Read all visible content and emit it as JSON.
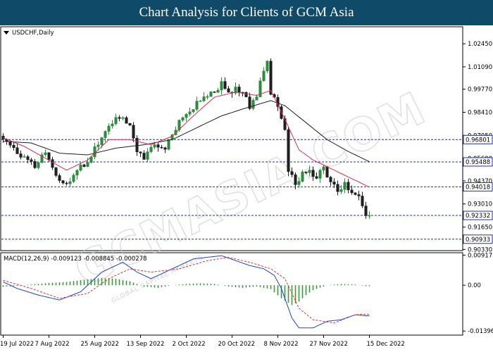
{
  "banner": {
    "title": "Chart Analysis for Clients of GCM Asia"
  },
  "watermark": {
    "text": "GCMASIA.COM",
    "tagline": "GLOBAL CAPITAL MARKETS",
    "color": "#c8c8c8"
  },
  "colors": {
    "bull": "#2e8b3e",
    "bear": "#1f1f1f",
    "ma_fast": "#d9304a",
    "ma_slow": "#1f1f1f",
    "level_line": "#1f2fa8",
    "macd_line": "#2240d8",
    "signal_line": "#e03030",
    "hist": "#3a9a3a"
  },
  "chart_data": [
    {
      "type": "candlestick",
      "title": "USDCHF,Daily",
      "ylim": [
        0.9026,
        1.0345
      ],
      "y_ticks": [
        0.9301,
        0.9165,
        0.9033,
        1.0245,
        1.0109,
        0.9977,
        0.9841,
        0.9705,
        0.9569,
        0.9437
      ],
      "x_labels": [
        "19 Jul 2022",
        "7 Aug 2022",
        "25 Aug 2022",
        "13 Sep 2022",
        "2 Oct 2022",
        "20 Oct 2022",
        "8 Nov 2022",
        "27 Nov 2022",
        "15 Dec 2022"
      ],
      "levels": [
        {
          "label": "0.96801",
          "value": 0.96801
        },
        {
          "label": "0.95488",
          "value": 0.95488
        },
        {
          "label": "0.94018",
          "value": 0.94018
        },
        {
          "label": "0.92332",
          "value": 0.92332
        },
        {
          "label": "0.90933",
          "value": 0.90933
        }
      ],
      "current_price": {
        "label": "0.92332",
        "value": 0.92332
      },
      "keypoints": [
        [
          0,
          0.97
        ],
        [
          2,
          0.964
        ],
        [
          4,
          0.96
        ],
        [
          7,
          0.956
        ],
        [
          9,
          0.951
        ],
        [
          12,
          0.96
        ],
        [
          14,
          0.952
        ],
        [
          16,
          0.942
        ],
        [
          19,
          0.943
        ],
        [
          22,
          0.952
        ],
        [
          25,
          0.959
        ],
        [
          27,
          0.966
        ],
        [
          30,
          0.976
        ],
        [
          32,
          0.98
        ],
        [
          34,
          0.982
        ],
        [
          36,
          0.975
        ],
        [
          38,
          0.96
        ],
        [
          40,
          0.958
        ],
        [
          42,
          0.962
        ],
        [
          44,
          0.964
        ],
        [
          46,
          0.964
        ],
        [
          48,
          0.97
        ],
        [
          50,
          0.978
        ],
        [
          52,
          0.983
        ],
        [
          54,
          0.984
        ],
        [
          56,
          0.993
        ],
        [
          58,
          0.994
        ],
        [
          60,
          0.997
        ],
        [
          62,
          1.001
        ],
        [
          64,
          0.995
        ],
        [
          66,
          1.0
        ],
        [
          68,
          0.994
        ],
        [
          70,
          0.988
        ],
        [
          72,
          0.993
        ],
        [
          74,
          1.008
        ],
        [
          75,
          1.015
        ],
        [
          76,
          0.996
        ],
        [
          78,
          0.987
        ],
        [
          80,
          0.975
        ],
        [
          81,
          0.95
        ],
        [
          83,
          0.942
        ],
        [
          85,
          0.948
        ],
        [
          87,
          0.952
        ],
        [
          89,
          0.944
        ],
        [
          91,
          0.952
        ],
        [
          93,
          0.942
        ],
        [
          95,
          0.938
        ],
        [
          97,
          0.941
        ],
        [
          99,
          0.935
        ],
        [
          101,
          0.933
        ],
        [
          103,
          0.924
        ]
      ],
      "ma_fast_keypoints": [
        [
          0,
          0.969
        ],
        [
          6,
          0.964
        ],
        [
          12,
          0.957
        ],
        [
          18,
          0.95
        ],
        [
          24,
          0.956
        ],
        [
          30,
          0.968
        ],
        [
          36,
          0.968
        ],
        [
          42,
          0.965
        ],
        [
          48,
          0.97
        ],
        [
          54,
          0.982
        ],
        [
          60,
          0.993
        ],
        [
          66,
          0.996
        ],
        [
          72,
          0.994
        ],
        [
          76,
          0.997
        ],
        [
          80,
          0.98
        ],
        [
          84,
          0.962
        ],
        [
          88,
          0.956
        ],
        [
          94,
          0.95
        ],
        [
          99,
          0.945
        ],
        [
          104,
          0.94
        ]
      ],
      "ma_slow_keypoints": [
        [
          0,
          0.967
        ],
        [
          8,
          0.966
        ],
        [
          16,
          0.96
        ],
        [
          24,
          0.959
        ],
        [
          32,
          0.963
        ],
        [
          40,
          0.965
        ],
        [
          48,
          0.968
        ],
        [
          56,
          0.976
        ],
        [
          62,
          0.982
        ],
        [
          68,
          0.986
        ],
        [
          76,
          0.991
        ],
        [
          80,
          0.988
        ],
        [
          86,
          0.978
        ],
        [
          92,
          0.968
        ],
        [
          98,
          0.961
        ],
        [
          104,
          0.955
        ]
      ]
    },
    {
      "type": "macd",
      "title": "MACD(12,26,9) -0.009123 -0.008845 -0.000278",
      "ylim": [
        -0.0152,
        0.0099
      ],
      "y_ticks": [
        {
          "label": "0.009173",
          "value": 0.009173
        },
        {
          "label": "0.00",
          "value": 0.0
        },
        {
          "label": "-0.013965",
          "value": -0.013965
        }
      ],
      "macd_keypoints": [
        [
          0,
          0.001
        ],
        [
          4,
          -0.001
        ],
        [
          10,
          -0.003
        ],
        [
          16,
          -0.0045
        ],
        [
          22,
          -0.002
        ],
        [
          28,
          0.004
        ],
        [
          34,
          0.007
        ],
        [
          38,
          0.004
        ],
        [
          42,
          0.002
        ],
        [
          48,
          0.005
        ],
        [
          54,
          0.008
        ],
        [
          58,
          0.0085
        ],
        [
          62,
          0.009
        ],
        [
          66,
          0.0075
        ],
        [
          70,
          0.006
        ],
        [
          74,
          0.005
        ],
        [
          77,
          0.003
        ],
        [
          79,
          -0.001
        ],
        [
          82,
          -0.01
        ],
        [
          84,
          -0.013
        ],
        [
          88,
          -0.013
        ],
        [
          92,
          -0.011
        ],
        [
          96,
          -0.0105
        ],
        [
          100,
          -0.009
        ],
        [
          103,
          -0.0093
        ]
      ],
      "signal_keypoints": [
        [
          0,
          0.0015
        ],
        [
          8,
          -0.001
        ],
        [
          16,
          -0.004
        ],
        [
          24,
          -0.0025
        ],
        [
          30,
          0.002
        ],
        [
          36,
          0.005
        ],
        [
          42,
          0.004
        ],
        [
          50,
          0.005
        ],
        [
          58,
          0.0075
        ],
        [
          64,
          0.0085
        ],
        [
          70,
          0.007
        ],
        [
          76,
          0.005
        ],
        [
          80,
          0.002
        ],
        [
          84,
          -0.007
        ],
        [
          88,
          -0.0105
        ],
        [
          94,
          -0.0115
        ],
        [
          100,
          -0.009
        ],
        [
          103,
          -0.0088
        ]
      ],
      "hist_keypoints": [
        [
          0,
          -0.0005
        ],
        [
          6,
          0.0
        ],
        [
          12,
          0.0006
        ],
        [
          18,
          0.001
        ],
        [
          24,
          0.0018
        ],
        [
          28,
          0.0022
        ],
        [
          32,
          0.002
        ],
        [
          36,
          0.0012
        ],
        [
          40,
          -0.0004
        ],
        [
          44,
          -0.0008
        ],
        [
          48,
          0.0
        ],
        [
          52,
          0.0004
        ],
        [
          56,
          0.0006
        ],
        [
          60,
          0.0004
        ],
        [
          64,
          -0.0004
        ],
        [
          68,
          -0.0008
        ],
        [
          72,
          -0.0004
        ],
        [
          76,
          -0.0012
        ],
        [
          79,
          -0.004
        ],
        [
          82,
          -0.006
        ],
        [
          84,
          -0.005
        ],
        [
          86,
          -0.003
        ],
        [
          88,
          -0.0015
        ],
        [
          92,
          0.0
        ],
        [
          96,
          0.0004
        ],
        [
          100,
          0.0002
        ],
        [
          103,
          -0.0003
        ]
      ]
    }
  ]
}
